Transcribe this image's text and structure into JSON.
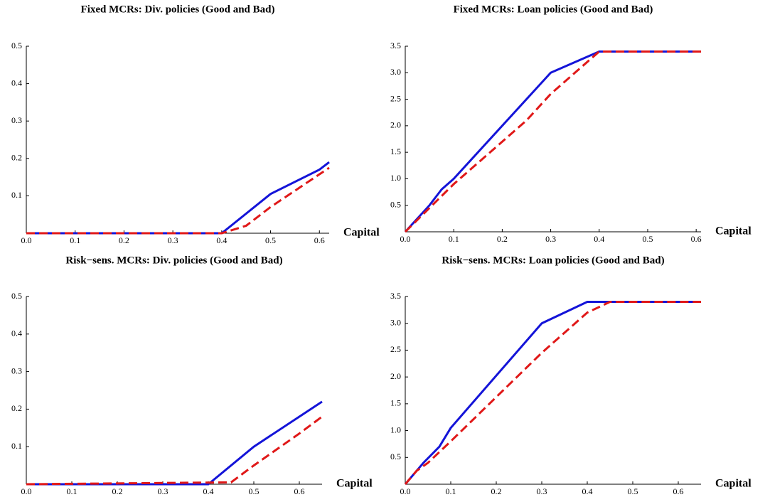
{
  "chart_data": [
    {
      "type": "line",
      "title": "Fixed MCRs: Div. policies (Good and Bad)",
      "x_label": "Capital",
      "xlim": [
        0,
        0.62
      ],
      "ylim": [
        0,
        0.5
      ],
      "xticks": [
        {
          "value": 0,
          "label": "0.0"
        },
        0.1,
        0.2,
        0.3,
        0.4,
        0.5,
        0.6
      ],
      "yticks": [
        0.1,
        0.2,
        0.3,
        0.4,
        0.5
      ],
      "series": [
        {
          "color": "#1414d8",
          "dashed": false,
          "x": [
            0,
            0.4,
            0.5,
            0.6,
            0.62
          ],
          "values": [
            0,
            0,
            0.105,
            0.17,
            0.19
          ]
        },
        {
          "color": "#e01818",
          "dashed": true,
          "x": [
            0,
            0.4,
            0.45,
            0.5,
            0.62
          ],
          "values": [
            0,
            0,
            0.02,
            0.07,
            0.175
          ]
        }
      ]
    },
    {
      "type": "line",
      "title": "Fixed MCRs: Loan policies (Good and Bad)",
      "x_label": "Capital",
      "xlim": [
        0,
        0.61
      ],
      "ylim": [
        0,
        3.5
      ],
      "xticks": [
        {
          "value": 0,
          "label": "0.0"
        },
        0.1,
        0.2,
        0.3,
        0.4,
        0.5,
        0.6
      ],
      "yticks": [
        0.5,
        {
          "value": 1,
          "label": "1.0"
        },
        1.5,
        {
          "value": 2,
          "label": "2.0"
        },
        2.5,
        {
          "value": 3,
          "label": "3.0"
        },
        3.5
      ],
      "series": [
        {
          "color": "#1414d8",
          "dashed": false,
          "x": [
            0,
            0.05,
            0.075,
            0.1,
            0.3,
            0.4,
            0.61
          ],
          "values": [
            0,
            0.5,
            0.8,
            1.0,
            3.0,
            3.4,
            3.4
          ]
        },
        {
          "color": "#e01818",
          "dashed": true,
          "x": [
            0,
            0.1,
            0.25,
            0.3,
            0.4,
            0.61
          ],
          "values": [
            0,
            0.9,
            2.1,
            2.6,
            3.4,
            3.4
          ]
        }
      ]
    },
    {
      "type": "line",
      "title": "Risk−sens. MCRs: Div. policies (Good and Bad)",
      "x_label": "Capital",
      "xlim": [
        0,
        0.65
      ],
      "ylim": [
        0,
        0.5
      ],
      "xticks": [
        {
          "value": 0,
          "label": "0.0"
        },
        0.1,
        0.2,
        0.3,
        0.4,
        0.5,
        0.6
      ],
      "yticks": [
        0.1,
        0.2,
        0.3,
        0.4,
        0.5
      ],
      "series": [
        {
          "color": "#1414d8",
          "dashed": false,
          "x": [
            0,
            0.4,
            0.5,
            0.6,
            0.65
          ],
          "values": [
            0,
            0,
            0.1,
            0.18,
            0.22
          ]
        },
        {
          "color": "#e01818",
          "dashed": true,
          "x": [
            0,
            0.45,
            0.5,
            0.6,
            0.65
          ],
          "values": [
            0,
            0.005,
            0.05,
            0.135,
            0.18
          ]
        }
      ]
    },
    {
      "type": "line",
      "title": "Risk−sens. MCRs: Loan policies (Good and Bad)",
      "x_label": "Capital",
      "xlim": [
        0,
        0.65
      ],
      "ylim": [
        0,
        3.5
      ],
      "xticks": [
        {
          "value": 0,
          "label": "0.0"
        },
        0.1,
        0.2,
        0.3,
        0.4,
        0.5,
        0.6
      ],
      "yticks": [
        0.5,
        {
          "value": 1,
          "label": "1.0"
        },
        1.5,
        {
          "value": 2,
          "label": "2.0"
        },
        2.5,
        {
          "value": 3,
          "label": "3.0"
        },
        3.5
      ],
      "series": [
        {
          "color": "#1414d8",
          "dashed": false,
          "x": [
            0,
            0.04,
            0.075,
            0.1,
            0.3,
            0.4,
            0.65
          ],
          "values": [
            0,
            0.4,
            0.7,
            1.05,
            3.0,
            3.4,
            3.4
          ]
        },
        {
          "color": "#e01818",
          "dashed": true,
          "x": [
            0,
            0.025,
            0.05,
            0.1,
            0.3,
            0.4,
            0.45,
            0.65
          ],
          "values": [
            0,
            0.25,
            0.4,
            0.8,
            2.45,
            3.2,
            3.4,
            3.4
          ]
        }
      ]
    }
  ]
}
